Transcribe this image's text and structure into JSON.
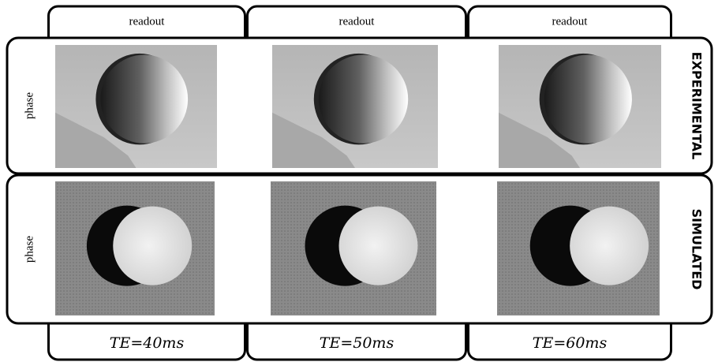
{
  "columns": [
    {
      "header": "readout",
      "footer": "TE=40ms"
    },
    {
      "header": "readout",
      "footer": "TE=50ms"
    },
    {
      "header": "readout",
      "footer": "TE=60ms"
    }
  ],
  "rows": [
    {
      "axis_label": "phase",
      "side_label": "EXPERIMENTAL"
    },
    {
      "axis_label": "phase",
      "side_label": "SIMULATED"
    }
  ]
}
